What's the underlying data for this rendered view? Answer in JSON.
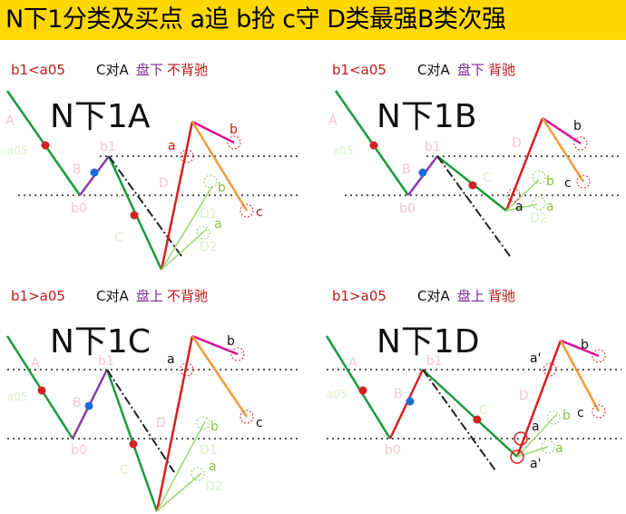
{
  "banner": {
    "title": "N下1分类及买点  a追 b抢 c守  D类最强B类次强",
    "background": "#ffd800"
  },
  "colors": {
    "segA": "#1a9a3a",
    "segB": "#8a3aaa",
    "segC": "#1a9a3a",
    "segD": "#d42020",
    "segMagenta": "#d8109a",
    "segOrange": "#f39a3a",
    "segLight": "#9ad870",
    "dotRed": "#d42020",
    "dotBlue": "#1a6ad8",
    "labelRed": "#c01818",
    "labelPurple": "#7a2a9a"
  },
  "panels": [
    {
      "name": "N下1A",
      "header": {
        "cond": "b1<a05",
        "text1": "C对A",
        "text2": "盘下",
        "text3": "不背驰"
      },
      "labels": {
        "A": "A",
        "a05": "a05",
        "B": "B",
        "b0": "b0",
        "b1": "b1",
        "C": "C",
        "D": "D",
        "D1": "D1",
        "D2": "D2",
        "a": "a",
        "b": "b",
        "c": "c"
      },
      "extra": {
        "b_small": "b",
        "a_small": "a"
      }
    },
    {
      "name": "N下1B",
      "header": {
        "cond": "b1<a05",
        "text1": "C对A",
        "text2": "盘下",
        "text3": "背驰"
      },
      "labels": {
        "A": "A",
        "a05": "a05",
        "B": "B",
        "b0": "b0",
        "b1": "b1",
        "C": "C",
        "D": "D",
        "D2": "D2",
        "a": "a",
        "b": "b",
        "c": "c"
      },
      "extra": {
        "b_small": "b",
        "a_small": "a"
      }
    },
    {
      "name": "N下1C",
      "header": {
        "cond": "b1>a05",
        "text1": "C对A",
        "text2": "盘上",
        "text3": "不背驰"
      },
      "labels": {
        "A": "A",
        "a05": "a05",
        "B": "B",
        "b0": "b0",
        "b1": "b1",
        "C": "C",
        "D": "D",
        "D1": "D1",
        "D2": "D2",
        "a": "a",
        "b": "b",
        "c": "c"
      },
      "extra": {
        "b_small": "b",
        "a_small": "a"
      }
    },
    {
      "name": "N下1D",
      "header": {
        "cond": "b1>a05",
        "text1": "C对A",
        "text2": "盘上",
        "text3": "背驰"
      },
      "labels": {
        "A": "A",
        "a05": "a05",
        "B": "B",
        "b0": "b0",
        "b1": "b1",
        "C": "C",
        "D": "D",
        "a": "a",
        "b": "b",
        "c": "c",
        "a_prime": "a'"
      },
      "extra": {
        "a_low": "a",
        "a_low_prime": "a'"
      }
    }
  ]
}
